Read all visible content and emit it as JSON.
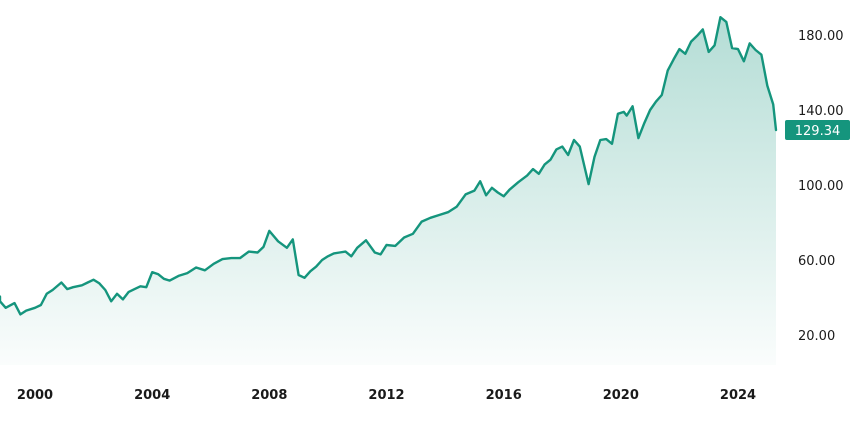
{
  "chart_data": {
    "type": "area",
    "title": "",
    "xlabel": "",
    "ylabel": "",
    "x_range": [
      1998.5,
      2025.4
    ],
    "ylim": [
      0,
      195
    ],
    "y_ticks": [
      20,
      60,
      100,
      140,
      180
    ],
    "y_tick_labels": [
      "20.00",
      "60.00",
      "100.00",
      "140.00",
      "180.00"
    ],
    "x_ticks": [
      2000,
      2004,
      2008,
      2012,
      2016,
      2020,
      2024
    ],
    "x_tick_labels": [
      "2000",
      "2004",
      "2008",
      "2012",
      "2016",
      "2020",
      "2024"
    ],
    "y_axis_side": "right",
    "grid": false,
    "line_color": "#15957d",
    "fill_color": "#15957d",
    "last_value": 129.34,
    "last_value_label": "129.34",
    "series": [
      {
        "x": [
          1998.5,
          1998.8,
          1999.0,
          1999.3,
          1999.5,
          1999.7,
          2000.0,
          2000.2,
          2000.4,
          2000.6,
          2000.9,
          2001.1,
          2001.3,
          2001.6,
          2001.8,
          2002.0,
          2002.2,
          2002.4,
          2002.6,
          2002.8,
          2003.0,
          2003.2,
          2003.4,
          2003.6,
          2003.8,
          2004.0,
          2004.2,
          2004.4,
          2004.6,
          2004.9,
          2005.2,
          2005.5,
          2005.8,
          2006.1,
          2006.4,
          2006.7,
          2007.0,
          2007.3,
          2007.6,
          2007.8,
          2008.0,
          2008.3,
          2008.6,
          2008.8,
          2009.0,
          2009.2,
          2009.4,
          2009.6,
          2009.8,
          2010.0,
          2010.2,
          2010.4,
          2010.6,
          2010.8,
          2011.0,
          2011.3,
          2011.6,
          2011.8,
          2012.0,
          2012.3,
          2012.6,
          2012.9,
          2013.2,
          2013.5,
          2013.8,
          2014.1,
          2014.4,
          2014.7,
          2015.0,
          2015.2,
          2015.4,
          2015.6,
          2015.8,
          2016.0,
          2016.2,
          2016.5,
          2016.8,
          2017.0,
          2017.2,
          2017.4,
          2017.6,
          2017.8,
          2018.0,
          2018.2,
          2018.4,
          2018.6,
          2018.9,
          2019.1,
          2019.3,
          2019.5,
          2019.7,
          2019.9,
          2020.1,
          2020.2,
          2020.4,
          2020.6,
          2020.8,
          2021.0,
          2021.2,
          2021.4,
          2021.6,
          2021.8,
          2022.0,
          2022.2,
          2022.4,
          2022.6,
          2022.8,
          2023.0,
          2023.2,
          2023.4,
          2023.6,
          2023.8,
          2024.0,
          2024.2,
          2024.4,
          2024.6,
          2024.8,
          2025.0,
          2025.2,
          2025.4
        ],
        "values": [
          40.5,
          38.0,
          34.5,
          37.0,
          31.0,
          33.0,
          34.5,
          36.0,
          42.0,
          44.0,
          48.0,
          44.5,
          45.5,
          46.5,
          48.0,
          49.5,
          47.5,
          44.0,
          38.0,
          42.0,
          39.0,
          43.0,
          44.5,
          46.0,
          45.5,
          53.5,
          52.5,
          50.0,
          49.0,
          51.5,
          53.0,
          56.0,
          54.5,
          58.0,
          60.5,
          61.0,
          61.0,
          64.5,
          64.0,
          67.0,
          75.5,
          70.0,
          66.5,
          71.0,
          52.0,
          50.5,
          54.0,
          56.5,
          60.0,
          62.0,
          63.5,
          64.0,
          64.5,
          62.0,
          66.5,
          70.5,
          64.0,
          63.0,
          68.0,
          67.5,
          72.0,
          74.0,
          80.5,
          82.5,
          84.0,
          85.5,
          88.5,
          95.0,
          97.0,
          102.0,
          94.5,
          98.5,
          96.0,
          94.0,
          97.5,
          101.5,
          105.0,
          108.5,
          106.0,
          111.0,
          113.5,
          119.0,
          120.5,
          116.0,
          124.0,
          120.5,
          100.5,
          115.0,
          124.0,
          124.5,
          122.0,
          138.0,
          139.0,
          137.0,
          142.0,
          125.0,
          133.0,
          140.0,
          144.5,
          148.0,
          161.0,
          167.0,
          172.5,
          170.0,
          176.5,
          179.5,
          183.0,
          171.0,
          174.5,
          189.5,
          187.0,
          173.0,
          172.5,
          166.0,
          175.5,
          172.0,
          169.5,
          153.0,
          143.0,
          129.34
        ]
      }
    ]
  }
}
